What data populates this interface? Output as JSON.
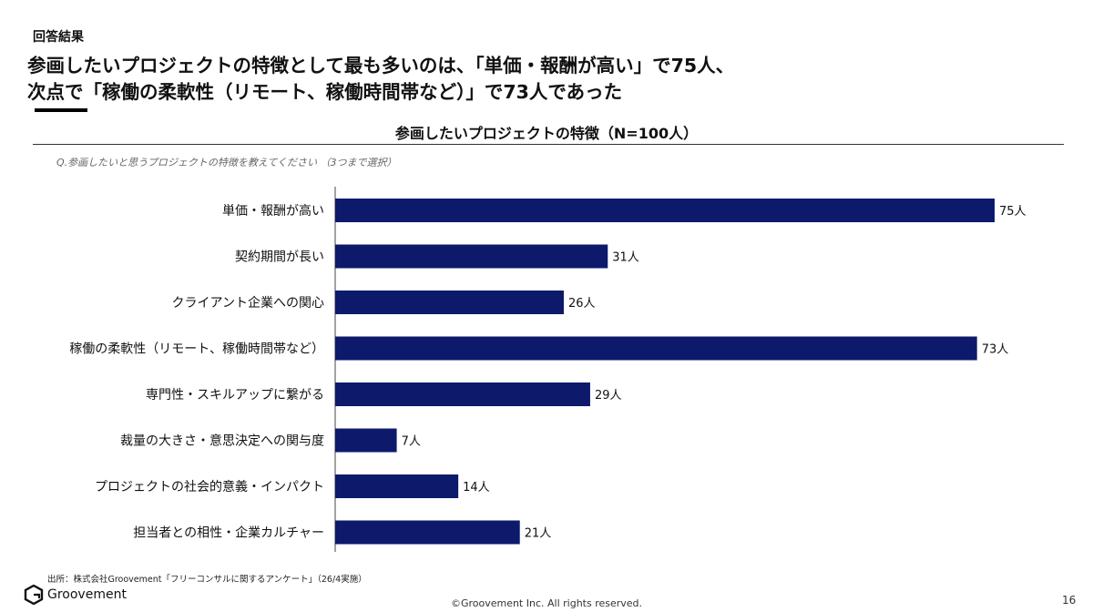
{
  "header": {
    "section_label": "回答結果",
    "headline_line1": "参画したいプロジェクトの特徴として最も多いのは、「単価・報酬が高い」で75人、",
    "headline_line2": "次点で「稼働の柔軟性（リモート、稼働時間帯など）」で73人であった"
  },
  "question": "Q.参画したいと思うプロジェクトの特徴を教えてください （3つまで選択）",
  "chart_data": {
    "type": "bar",
    "orientation": "horizontal",
    "title": "参画したいプロジェクトの特徴（N=100人）",
    "categories": [
      "単価・報酬が高い",
      "契約期間が長い",
      "クライアント企業への関心",
      "稼働の柔軟性（リモート、稼働時間帯など）",
      "専門性・スキルアップに繋がる",
      "裁量の大きさ・意思決定への関与度",
      "プロジェクトの社会的意義・インパクト",
      "担当者との相性・企業カルチャー"
    ],
    "values": [
      75,
      31,
      26,
      73,
      29,
      7,
      14,
      21
    ],
    "value_labels": [
      "75人",
      "31人",
      "26人",
      "73人",
      "29人",
      "7人",
      "14人",
      "21人"
    ],
    "xlim": [
      0,
      75
    ],
    "bar_color": "#0d1a6b",
    "grid": false
  },
  "footer": {
    "source": "出所：株式会社Groovement「フリーコンサルに関するアンケート」（26/4実施）",
    "logo_text": "Groovement",
    "copyright": "©Groovement Inc. All rights reserved.",
    "page_number": "16"
  }
}
